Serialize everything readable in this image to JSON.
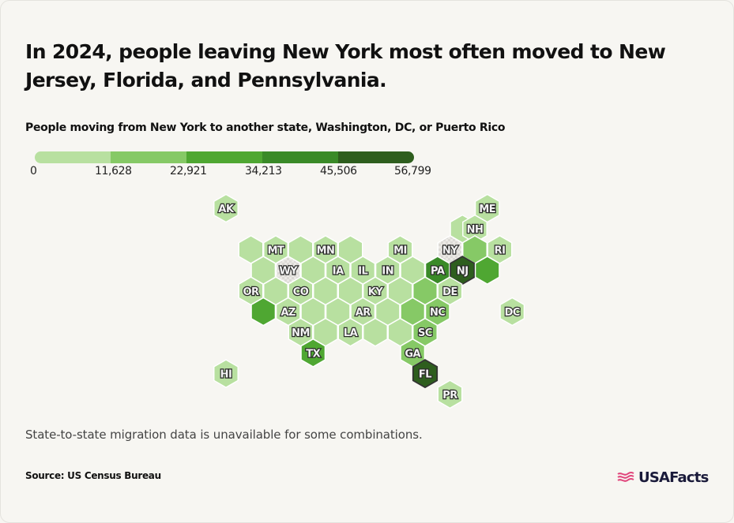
{
  "title": "In 2024, people leaving New York most often moved to New Jersey, Florida, and Pennsylvania.",
  "subtitle": "People moving from New York to another state, Washington, DC, or Puerto Rico",
  "legend": {
    "ticks": [
      "0",
      "11,628",
      "22,921",
      "34,213",
      "45,506",
      "56,799"
    ],
    "colors": [
      "#b8e0a0",
      "#86c966",
      "#4fa732",
      "#3a8a28",
      "#2e5e1e"
    ]
  },
  "footnote": "State-to-state migration data is unavailable for some combinations.",
  "source": "Source: US Census Bureau",
  "brand": {
    "name": "USAFacts",
    "mark_color": "#e0457b",
    "name_color": "#1a1a3a"
  },
  "colors": {
    "no_data": "#e7e6e2",
    "label_text": "#f4f4f4",
    "label_outline": "#2a2a2a",
    "hex_border": "#ffffff",
    "selected_outline": "#333333"
  },
  "states": [
    {
      "abbr": "AK",
      "label": "AK",
      "value": 5000,
      "col": 0,
      "row": 0
    },
    {
      "abbr": "ME",
      "label": "ME",
      "value": 5000,
      "col": 10.5,
      "row": 0
    },
    {
      "abbr": "",
      "label": "",
      "value": 5000,
      "col": 9.5,
      "row": 1
    },
    {
      "abbr": "NH",
      "label": "NH",
      "value": 5000,
      "col": 10,
      "row": 1
    },
    {
      "abbr": "",
      "label": "",
      "value": 5000,
      "col": 1,
      "row": 2
    },
    {
      "abbr": "MT",
      "label": "MT",
      "value": 5000,
      "col": 2,
      "row": 2
    },
    {
      "abbr": "",
      "label": "",
      "value": 5000,
      "col": 3,
      "row": 2
    },
    {
      "abbr": "MN",
      "label": "MN",
      "value": 5000,
      "col": 4,
      "row": 2
    },
    {
      "abbr": "",
      "label": "",
      "value": 5000,
      "col": 5,
      "row": 2
    },
    {
      "abbr": "MI",
      "label": "MI",
      "value": 5000,
      "col": 7,
      "row": 2
    },
    {
      "abbr": "NY",
      "label": "NY",
      "value": null,
      "col": 9,
      "row": 2
    },
    {
      "abbr": "",
      "label": "",
      "value": 15000,
      "col": 10,
      "row": 2
    },
    {
      "abbr": "RI",
      "label": "RI",
      "value": 5000,
      "col": 11,
      "row": 2
    },
    {
      "abbr": "",
      "label": "",
      "value": 5000,
      "col": 1.5,
      "row": 3
    },
    {
      "abbr": "WY",
      "label": "WY",
      "value": null,
      "col": 2.5,
      "row": 3
    },
    {
      "abbr": "",
      "label": "",
      "value": 5000,
      "col": 3.5,
      "row": 3
    },
    {
      "abbr": "IA",
      "label": "IA",
      "value": 5000,
      "col": 4.5,
      "row": 3
    },
    {
      "abbr": "IL",
      "label": "IL",
      "value": 5000,
      "col": 5.5,
      "row": 3
    },
    {
      "abbr": "IN",
      "label": "IN",
      "value": 5000,
      "col": 6.5,
      "row": 3
    },
    {
      "abbr": "",
      "label": "",
      "value": 5000,
      "col": 7.5,
      "row": 3
    },
    {
      "abbr": "PA",
      "label": "PA",
      "value": 40000,
      "col": 8.5,
      "row": 3
    },
    {
      "abbr": "NJ",
      "label": "NJ",
      "value": 56799,
      "col": 9.5,
      "row": 3,
      "selected": true
    },
    {
      "abbr": "",
      "label": "",
      "value": 28000,
      "col": 10.5,
      "row": 3
    },
    {
      "abbr": "OR",
      "label": "OR",
      "value": 5000,
      "col": 1,
      "row": 4
    },
    {
      "abbr": "",
      "label": "",
      "value": 5000,
      "col": 2,
      "row": 4
    },
    {
      "abbr": "CO",
      "label": "CO",
      "value": 5000,
      "col": 3,
      "row": 4
    },
    {
      "abbr": "",
      "label": "",
      "value": 5000,
      "col": 4,
      "row": 4
    },
    {
      "abbr": "",
      "label": "",
      "value": 5000,
      "col": 5,
      "row": 4
    },
    {
      "abbr": "KY",
      "label": "KY",
      "value": 5000,
      "col": 6,
      "row": 4
    },
    {
      "abbr": "",
      "label": "",
      "value": 5000,
      "col": 7,
      "row": 4
    },
    {
      "abbr": "",
      "label": "",
      "value": 15000,
      "col": 8,
      "row": 4
    },
    {
      "abbr": "DE",
      "label": "DE",
      "value": 5000,
      "col": 9,
      "row": 4
    },
    {
      "abbr": "",
      "label": "",
      "value": 28000,
      "col": 1.5,
      "row": 5
    },
    {
      "abbr": "AZ",
      "label": "AZ",
      "value": 5000,
      "col": 2.5,
      "row": 5
    },
    {
      "abbr": "",
      "label": "",
      "value": 5000,
      "col": 3.5,
      "row": 5
    },
    {
      "abbr": "",
      "label": "",
      "value": 5000,
      "col": 4.5,
      "row": 5
    },
    {
      "abbr": "AR",
      "label": "AR",
      "value": 5000,
      "col": 5.5,
      "row": 5
    },
    {
      "abbr": "",
      "label": "",
      "value": 5000,
      "col": 6.5,
      "row": 5
    },
    {
      "abbr": "",
      "label": "",
      "value": 15000,
      "col": 7.5,
      "row": 5
    },
    {
      "abbr": "NC",
      "label": "NC",
      "value": 15000,
      "col": 8.5,
      "row": 5
    },
    {
      "abbr": "DC",
      "label": "DC",
      "value": 5000,
      "col": 11.5,
      "row": 5
    },
    {
      "abbr": "NM",
      "label": "NM",
      "value": 5000,
      "col": 3,
      "row": 6
    },
    {
      "abbr": "",
      "label": "",
      "value": 5000,
      "col": 4,
      "row": 6
    },
    {
      "abbr": "LA",
      "label": "LA",
      "value": 5000,
      "col": 5,
      "row": 6
    },
    {
      "abbr": "",
      "label": "",
      "value": 5000,
      "col": 6,
      "row": 6
    },
    {
      "abbr": "",
      "label": "",
      "value": 5000,
      "col": 7,
      "row": 6
    },
    {
      "abbr": "SC",
      "label": "SC",
      "value": 15000,
      "col": 8,
      "row": 6
    },
    {
      "abbr": "TX",
      "label": "TX",
      "value": 28000,
      "col": 3.5,
      "row": 7
    },
    {
      "abbr": "GA",
      "label": "GA",
      "value": 15000,
      "col": 7.5,
      "row": 7
    },
    {
      "abbr": "HI",
      "label": "HI",
      "value": 5000,
      "col": 0,
      "row": 8
    },
    {
      "abbr": "FL",
      "label": "FL",
      "value": 56799,
      "col": 8,
      "row": 8,
      "selected": true
    },
    {
      "abbr": "PR",
      "label": "PR",
      "value": 5000,
      "col": 9,
      "row": 9
    }
  ]
}
